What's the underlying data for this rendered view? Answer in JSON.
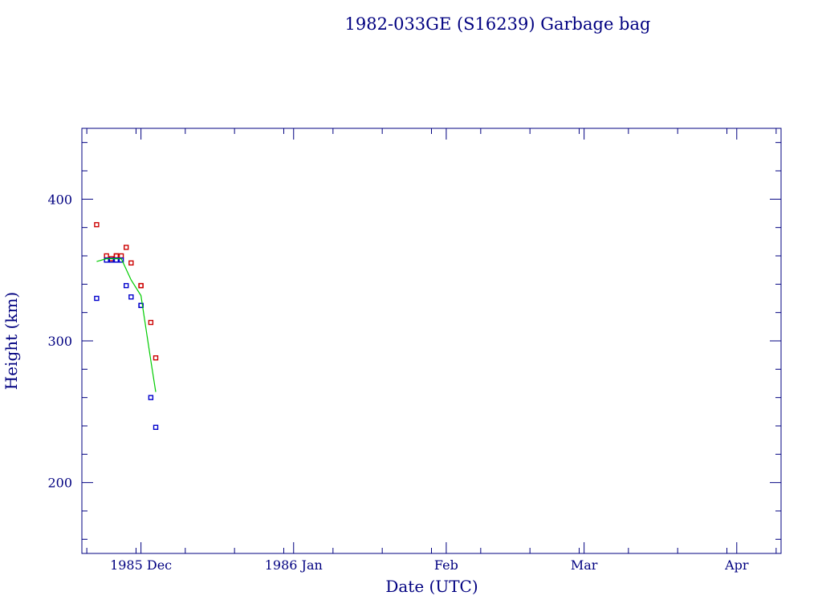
{
  "chart_data": {
    "type": "scatter",
    "title": "1982-033GE (S16239) Garbage bag",
    "xlabel": "Date (UTC)",
    "ylabel": "Height (km)",
    "ylim": [
      150,
      450
    ],
    "xlim": [
      "1985-11-19",
      "1986-04-10"
    ],
    "x_ticks": [
      {
        "date": "1985-12-01",
        "label": "1985 Dec"
      },
      {
        "date": "1986-01-01",
        "label": "1986 Jan"
      },
      {
        "date": "1986-02-01",
        "label": "Feb"
      },
      {
        "date": "1986-03-01",
        "label": "Mar"
      },
      {
        "date": "1986-04-01",
        "label": "Apr"
      }
    ],
    "y_ticks": [
      200,
      300,
      400
    ],
    "grid": false,
    "colors": {
      "apogee": "#cc0000",
      "perigee": "#0000cc",
      "mean": "#00cc00",
      "axes": "#000080"
    },
    "series": [
      {
        "key": "apogee",
        "marker": "square",
        "color": "#cc0000",
        "points": [
          [
            "1985-11-22",
            382
          ],
          [
            "1985-11-24",
            360
          ],
          [
            "1985-11-26",
            360
          ],
          [
            "1985-11-26",
            360
          ],
          [
            "1985-11-27",
            360
          ],
          [
            "1985-11-28",
            366
          ],
          [
            "1985-11-25",
            358
          ],
          [
            "1985-11-29",
            355
          ],
          [
            "1985-12-01",
            339
          ],
          [
            "1985-12-01",
            339
          ],
          [
            "1985-12-03",
            313
          ],
          [
            "1985-12-04",
            288
          ]
        ]
      },
      {
        "key": "perigee",
        "marker": "square",
        "color": "#0000cc",
        "points": [
          [
            "1985-11-22",
            330
          ],
          [
            "1985-11-24",
            357
          ],
          [
            "1985-11-26",
            357
          ],
          [
            "1985-11-26",
            357
          ],
          [
            "1985-11-27",
            357
          ],
          [
            "1985-11-28",
            339
          ],
          [
            "1985-11-25",
            357
          ],
          [
            "1985-11-29",
            331
          ],
          [
            "1985-12-01",
            325
          ],
          [
            "1985-12-01",
            325
          ],
          [
            "1985-12-03",
            260
          ],
          [
            "1985-12-04",
            239
          ]
        ]
      },
      {
        "key": "mean",
        "marker": "line",
        "color": "#00cc00",
        "points": [
          [
            "1985-11-22",
            356
          ],
          [
            "1985-11-24",
            358
          ],
          [
            "1985-11-26",
            358
          ],
          [
            "1985-11-27",
            358
          ],
          [
            "1985-11-29",
            343
          ],
          [
            "1985-12-01",
            332
          ],
          [
            "1985-12-03",
            286
          ],
          [
            "1985-12-04",
            264
          ]
        ]
      }
    ]
  }
}
